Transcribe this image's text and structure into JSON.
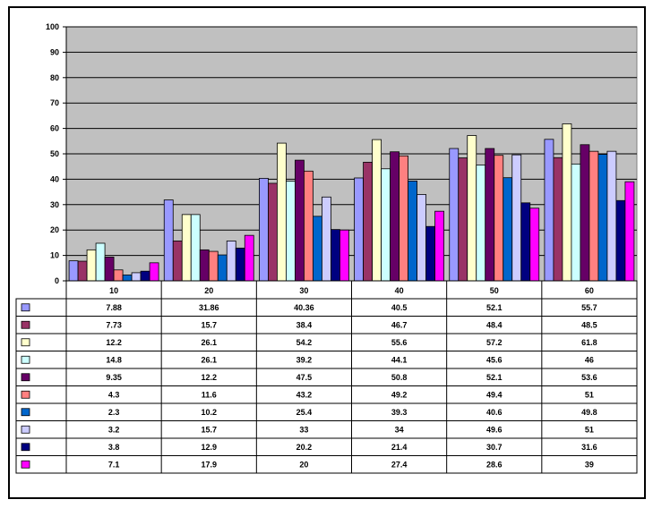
{
  "chart_data": {
    "type": "bar",
    "title": "",
    "xlabel": "",
    "ylabel": "",
    "ylim": [
      0,
      100
    ],
    "yticks": [
      0,
      10,
      20,
      30,
      40,
      50,
      60,
      70,
      80,
      90,
      100
    ],
    "grid": true,
    "plot_background": "#c0c0c0",
    "legend": "data-table-left",
    "categories": [
      "10",
      "20",
      "30",
      "40",
      "50",
      "60"
    ],
    "series": [
      {
        "name": "",
        "color": "#9999ff",
        "values": [
          7.88,
          31.86,
          40.36,
          40.5,
          52.1,
          55.7
        ]
      },
      {
        "name": "",
        "color": "#993366",
        "values": [
          7.73,
          15.7,
          38.4,
          46.7,
          48.4,
          48.5
        ]
      },
      {
        "name": "",
        "color": "#ffffcc",
        "values": [
          12.2,
          26.1,
          54.2,
          55.6,
          57.2,
          61.8
        ]
      },
      {
        "name": "",
        "color": "#ccffff",
        "values": [
          14.8,
          26.1,
          39.2,
          44.1,
          45.6,
          46.0
        ]
      },
      {
        "name": "",
        "color": "#660066",
        "values": [
          9.35,
          12.2,
          47.5,
          50.8,
          52.1,
          53.6
        ]
      },
      {
        "name": "",
        "color": "#ff8080",
        "values": [
          4.3,
          11.6,
          43.2,
          49.2,
          49.4,
          51.0
        ]
      },
      {
        "name": "",
        "color": "#0066cc",
        "values": [
          2.3,
          10.2,
          25.4,
          39.3,
          40.6,
          49.8
        ]
      },
      {
        "name": "",
        "color": "#ccccff",
        "values": [
          3.2,
          15.7,
          33.0,
          34.0,
          49.6,
          51.0
        ]
      },
      {
        "name": "",
        "color": "#000080",
        "values": [
          3.8,
          12.9,
          20.2,
          21.4,
          30.7,
          31.6
        ]
      },
      {
        "name": "",
        "color": "#ff00ff",
        "values": [
          7.1,
          17.9,
          20.0,
          27.4,
          28.6,
          39.0
        ]
      }
    ]
  }
}
